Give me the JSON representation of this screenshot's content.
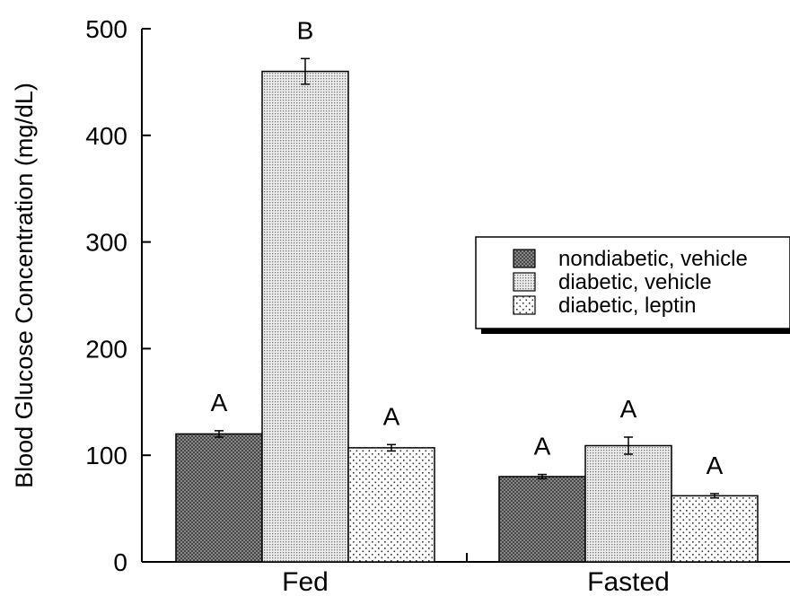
{
  "chart_data": {
    "type": "bar",
    "title": "",
    "xlabel": "",
    "ylabel": "Blood Glucose Concentration (mg/dL)",
    "ylim": [
      0,
      500
    ],
    "yticks": [
      0,
      100,
      200,
      300,
      400,
      500
    ],
    "grid": false,
    "legend_position": "right",
    "categories": [
      "Fed",
      "Fasted"
    ],
    "series": [
      {
        "name": "nondiabetic, vehicle",
        "pattern": "dense-crosshatch",
        "values": [
          120,
          80
        ],
        "errors": [
          3,
          2
        ],
        "significance": [
          "A",
          "A"
        ]
      },
      {
        "name": "diabetic, vehicle",
        "pattern": "fine-dots",
        "values": [
          460,
          109
        ],
        "errors": [
          12,
          8
        ],
        "significance": [
          "B",
          "A"
        ]
      },
      {
        "name": "diabetic, leptin",
        "pattern": "sparse-dots",
        "values": [
          107,
          62
        ],
        "errors": [
          3,
          2
        ],
        "significance": [
          "A",
          "A"
        ]
      }
    ]
  }
}
